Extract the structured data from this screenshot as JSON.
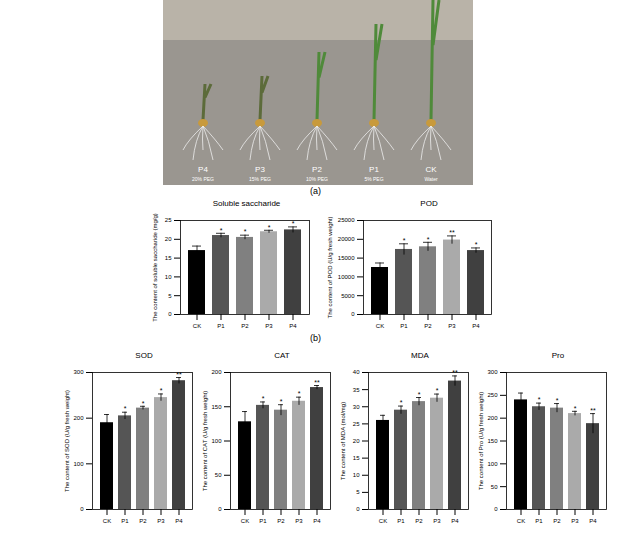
{
  "photo": {
    "caption": "(a)",
    "labels": [
      "P4",
      "P3",
      "P2",
      "P1",
      "CK"
    ],
    "treatments": [
      "20% PEG",
      "15% PEG",
      "10% PEG",
      "5% PEG",
      "Water"
    ]
  },
  "charts_caption": "(b)",
  "chart_data": [
    {
      "type": "bar",
      "title": "Soluble saccharide",
      "y_label": "The content of soluble saccharide (mg/g)",
      "categories": [
        "CK",
        "P1",
        "P2",
        "P3",
        "P4"
      ],
      "values": [
        17,
        21,
        20.5,
        22,
        22.5
      ],
      "errors": [
        1.2,
        0.6,
        0.6,
        0.4,
        0.8
      ],
      "significance": [
        null,
        "*",
        "*",
        "*",
        "*"
      ],
      "colors": [
        "#000000",
        "#555555",
        "#808080",
        "#aaaaaa",
        "#404040"
      ],
      "ylim": [
        0,
        25
      ],
      "yticks": [
        0,
        5,
        10,
        15,
        20,
        25
      ]
    },
    {
      "type": "bar",
      "title": "POD",
      "y_label": "The content of POD (U/g fresh weight)",
      "categories": [
        "CK",
        "P1",
        "P2",
        "P3",
        "P4"
      ],
      "values": [
        12500,
        17300,
        18000,
        19800,
        17000
      ],
      "errors": [
        1200,
        1500,
        1200,
        1100,
        700
      ],
      "significance": [
        null,
        "*",
        "*",
        "**",
        "*"
      ],
      "colors": [
        "#000000",
        "#555555",
        "#808080",
        "#aaaaaa",
        "#404040"
      ],
      "ylim": [
        0,
        25000
      ],
      "yticks": [
        0,
        5000,
        10000,
        15000,
        20000,
        25000
      ]
    },
    {
      "type": "bar",
      "title": "SOD",
      "y_label": "The content of SOD (U/g fresh weight)",
      "categories": [
        "CK",
        "P1",
        "P2",
        "P3",
        "P4"
      ],
      "values": [
        190,
        205,
        222,
        245,
        282
      ],
      "errors": [
        18,
        8,
        4,
        8,
        7
      ],
      "significance": [
        null,
        "*",
        "*",
        "*",
        "**"
      ],
      "colors": [
        "#000000",
        "#555555",
        "#808080",
        "#aaaaaa",
        "#404040"
      ],
      "ylim": [
        0,
        300
      ],
      "yticks": [
        0,
        100,
        200,
        300
      ]
    },
    {
      "type": "bar",
      "title": "CAT",
      "y_label": "The content of CAT (U/g fresh weight)",
      "categories": [
        "CK",
        "P1",
        "P2",
        "P3",
        "P4"
      ],
      "values": [
        128,
        152,
        145,
        158,
        178
      ],
      "errors": [
        15,
        5,
        8,
        6,
        3
      ],
      "significance": [
        null,
        "*",
        "*",
        "*",
        "**"
      ],
      "colors": [
        "#000000",
        "#555555",
        "#808080",
        "#aaaaaa",
        "#404040"
      ],
      "ylim": [
        0,
        200
      ],
      "yticks": [
        0,
        50,
        100,
        150,
        200
      ]
    },
    {
      "type": "bar",
      "title": "MDA",
      "y_label": "The content of MDA (mol/mg)",
      "categories": [
        "CK",
        "P1",
        "P2",
        "P3",
        "P4"
      ],
      "values": [
        26,
        29,
        31.5,
        32.5,
        37.5
      ],
      "errors": [
        1.5,
        1.2,
        1.2,
        1.2,
        1.5
      ],
      "significance": [
        null,
        "*",
        "*",
        "*",
        "**"
      ],
      "colors": [
        "#000000",
        "#555555",
        "#808080",
        "#aaaaaa",
        "#404040"
      ],
      "ylim": [
        0,
        40
      ],
      "yticks": [
        0,
        5,
        10,
        15,
        20,
        25,
        30,
        35,
        40
      ]
    },
    {
      "type": "bar",
      "title": "Pro",
      "y_label": "The content of Pro (U/g fresh weight)",
      "categories": [
        "CK",
        "P1",
        "P2",
        "P3",
        "P4"
      ],
      "values": [
        240,
        225,
        222,
        210,
        188
      ],
      "errors": [
        15,
        8,
        10,
        5,
        22
      ],
      "significance": [
        null,
        "*",
        "*",
        "*",
        "**"
      ],
      "colors": [
        "#000000",
        "#555555",
        "#808080",
        "#aaaaaa",
        "#404040"
      ],
      "ylim": [
        0,
        300
      ],
      "yticks": [
        0,
        50,
        100,
        150,
        200,
        250,
        300
      ]
    }
  ]
}
